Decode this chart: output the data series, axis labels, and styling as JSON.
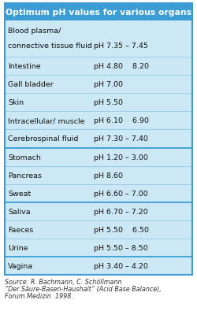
{
  "title": "Optimum pH values for various organs",
  "title_bg": "#3b9dd4",
  "title_color": "#ffffff",
  "table_bg": "#cce8f4",
  "border_color": "#3b9dd4",
  "divider_light": "#7ec8e8",
  "divider_bold": "#3b9dd4",
  "rows": [
    {
      "organ": "Blood plasma/\nconnective tissue fluid",
      "ph": "pH 7.35 – 7.45",
      "bold_divider": false,
      "double": true
    },
    {
      "organ": "Intestine",
      "ph": "pH 4.80    8.20",
      "bold_divider": false,
      "double": false
    },
    {
      "organ": "Gall bladder",
      "ph": "pH 7.00",
      "bold_divider": false,
      "double": false
    },
    {
      "organ": "Skin",
      "ph": "pH 5.50",
      "bold_divider": false,
      "double": false
    },
    {
      "organ": "Intracellular/ muscle",
      "ph": "pH 6.10    6.90",
      "bold_divider": false,
      "double": false
    },
    {
      "organ": "Cerebrospinal fluid",
      "ph": "pH 7.30 – 7.40",
      "bold_divider": true,
      "double": false
    },
    {
      "organ": "Stomach",
      "ph": "pH 1.20 – 3.00",
      "bold_divider": false,
      "double": false
    },
    {
      "organ": "Pancreas",
      "ph": "pH 8.60",
      "bold_divider": false,
      "double": false
    },
    {
      "organ": "Sweat",
      "ph": "pH 6.60 – 7.00",
      "bold_divider": true,
      "double": false
    },
    {
      "organ": "Saliva",
      "ph": "pH 6.70 – 7.20",
      "bold_divider": false,
      "double": false
    },
    {
      "organ": "Faeces",
      "ph": "pH 5.50    6.50",
      "bold_divider": false,
      "double": false
    },
    {
      "organ": "Urine",
      "ph": "pH 5.50 – 8.50",
      "bold_divider": true,
      "double": false
    },
    {
      "organ": "Vagina",
      "ph": "pH 3.40 – 4.20",
      "bold_divider": false,
      "double": false
    }
  ],
  "source_lines": [
    "Source: R. Bachmann, C. Schöllmann",
    "“Der Säure-Basen-Haushalt” (Acid Base Balance),",
    "Forum Medizin  1998."
  ],
  "font_size_title": 7.8,
  "font_size_body": 6.8,
  "font_size_source": 5.8
}
